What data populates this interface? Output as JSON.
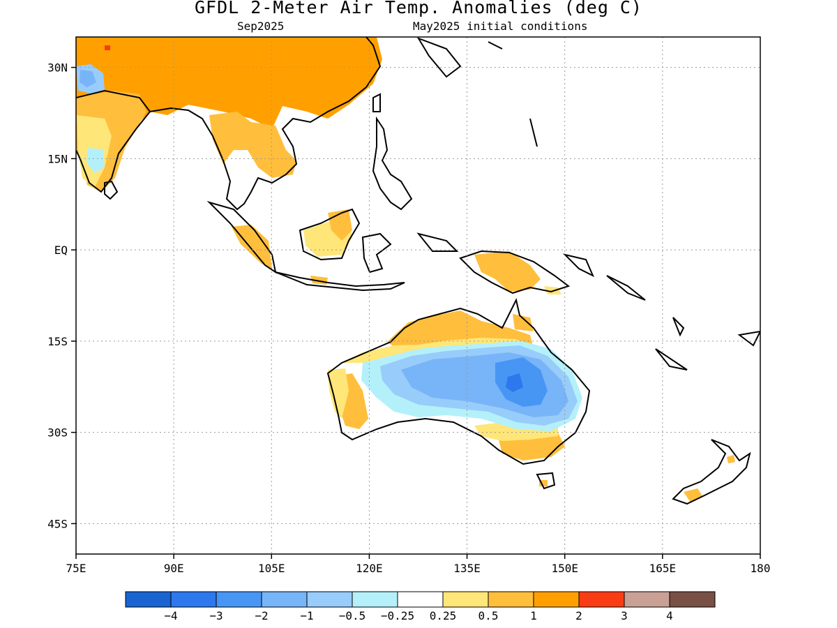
{
  "title": "GFDL 2-Meter Air Temp. Anomalies (deg C)",
  "subtitle_left": "Sep2025",
  "subtitle_right": "May2025 initial conditions",
  "map": {
    "lon_range": [
      75,
      180
    ],
    "lat_range": [
      -50,
      35
    ],
    "x_ticks": [
      {
        "value": 75,
        "label": "75E"
      },
      {
        "value": 90,
        "label": "90E"
      },
      {
        "value": 105,
        "label": "105E"
      },
      {
        "value": 120,
        "label": "120E"
      },
      {
        "value": 135,
        "label": "135E"
      },
      {
        "value": 150,
        "label": "150E"
      },
      {
        "value": 165,
        "label": "165E"
      },
      {
        "value": 180,
        "label": "180"
      }
    ],
    "y_ticks": [
      {
        "value": 30,
        "label": "30N"
      },
      {
        "value": 15,
        "label": "15N"
      },
      {
        "value": 0,
        "label": "EQ"
      },
      {
        "value": -15,
        "label": "15S"
      },
      {
        "value": -30,
        "label": "30S"
      },
      {
        "value": -45,
        "label": "45S"
      }
    ],
    "grid": true
  },
  "colorbar": {
    "colors": [
      "#1a64d2",
      "#2d78ec",
      "#4896f4",
      "#78b4f8",
      "#98ccfa",
      "#b4f0fa",
      "#ffffff",
      "#ffe678",
      "#ffbe3c",
      "#ffa000",
      "#fa3c14",
      "#c8a096",
      "#785046"
    ],
    "labels": [
      "−4",
      "−3",
      "−2",
      "−1",
      "−0.5",
      "−0.25",
      "0.25",
      "0.5",
      "1",
      "2",
      "3",
      "4"
    ]
  }
}
